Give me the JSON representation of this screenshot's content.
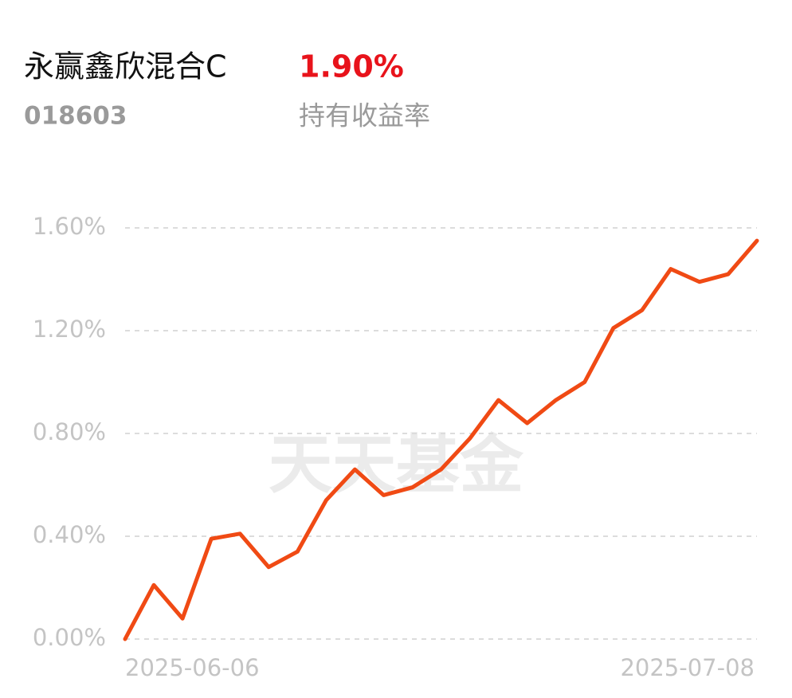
{
  "header": {
    "title": "永赢鑫欣混合C",
    "code": "018603",
    "return": "1.90%",
    "return_label": "持有收益率"
  },
  "chart_data": {
    "type": "line",
    "watermark": "天天基金",
    "categories": [
      "2025-06-06",
      null,
      null,
      null,
      null,
      null,
      null,
      null,
      null,
      null,
      null,
      null,
      null,
      null,
      null,
      null,
      null,
      null,
      null,
      null,
      null,
      null,
      "2025-07-08"
    ],
    "series": [
      {
        "color": "#f04a14",
        "values": [
          0,
          0.21,
          0.08,
          0.39,
          0.41,
          0.28,
          0.34,
          0.54,
          0.66,
          0.56,
          0.59,
          0.66,
          0.78,
          0.93,
          0.84,
          0.93,
          1.0,
          1.21,
          1.28,
          1.44,
          1.39,
          1.42,
          1.55
        ]
      }
    ],
    "ylim": [
      0,
      1.6
    ],
    "yticks": [
      {
        "value": 0,
        "label": "0.00%"
      },
      {
        "value": 0.4,
        "label": "0.40%"
      },
      {
        "value": 0.8,
        "label": "0.80%"
      },
      {
        "value": 1.2,
        "label": "1.20%"
      },
      {
        "value": 1.6,
        "label": "1.60%"
      }
    ],
    "grid": true
  }
}
